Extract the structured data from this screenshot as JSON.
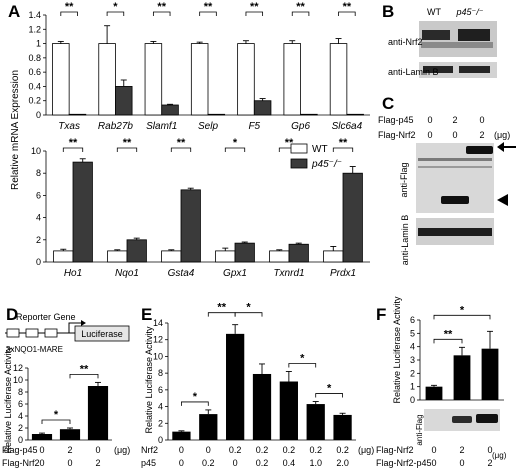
{
  "panels": {
    "A": "A",
    "B": "B",
    "C": "C",
    "D": "D",
    "E": "E",
    "F": "F"
  },
  "chart_data": [
    {
      "panel": "A",
      "type": "bar",
      "ylabel": "Relative mRNA Expression",
      "series_names": [
        "WT",
        "p45⁻/⁻"
      ],
      "subplots": [
        {
          "categories": [
            "Txas",
            "Rab27b",
            "Slamf1",
            "Selp",
            "F5",
            "Gp6",
            "Slc6a4"
          ],
          "ylim": [
            0,
            1.4
          ],
          "yticks": [
            "0",
            "0.2",
            "0.4",
            "0.6",
            "0.8",
            "1",
            "1.2",
            "1.4"
          ],
          "series": [
            {
              "values": [
                1.0,
                1.0,
                1.0,
                1.0,
                1.0,
                1.0,
                1.0
              ],
              "errors": [
                0.03,
                0.25,
                0.03,
                0.02,
                0.04,
                0.04,
                0.07
              ]
            },
            {
              "values": [
                0.01,
                0.4,
                0.14,
                0.01,
                0.2,
                0.01,
                0.01
              ],
              "errors": [
                0.0,
                0.09,
                0.01,
                0.0,
                0.03,
                0.0,
                0.0
              ]
            }
          ],
          "significance": [
            "**",
            "*",
            "**",
            "**",
            "**",
            "**",
            "**"
          ]
        },
        {
          "categories": [
            "Ho1",
            "Nqo1",
            "Gsta4",
            "Gpx1",
            "Txnrd1",
            "Prdx1"
          ],
          "ylim": [
            0,
            10
          ],
          "yticks": [
            "0",
            "2",
            "4",
            "6",
            "8",
            "10"
          ],
          "series": [
            {
              "values": [
                1.0,
                1.0,
                1.0,
                1.0,
                1.0,
                1.0
              ],
              "errors": [
                0.15,
                0.1,
                0.1,
                0.25,
                0.1,
                0.4
              ]
            },
            {
              "values": [
                9.0,
                2.0,
                6.5,
                1.7,
                1.6,
                8.0
              ],
              "errors": [
                0.3,
                0.15,
                0.15,
                0.1,
                0.1,
                0.6
              ]
            }
          ],
          "significance": [
            "**",
            "**",
            "**",
            "*",
            "**",
            "**"
          ]
        }
      ]
    },
    {
      "panel": "D",
      "type": "bar",
      "ylabel": "Relative Luciferase Activity",
      "ylim": [
        0,
        12
      ],
      "yticks": [
        "0",
        "2",
        "4",
        "6",
        "8",
        "10",
        "12"
      ],
      "conditions": [
        {
          "label": "Flag-p45",
          "values": [
            "0",
            "2",
            "0"
          ]
        },
        {
          "label": "Flag-Nrf2",
          "values": [
            "0",
            "0",
            "2"
          ]
        }
      ],
      "unit": "(μg)",
      "values": [
        1.0,
        1.8,
        9.0
      ],
      "errors": [
        0.15,
        0.2,
        0.6
      ],
      "significance": [
        {
          "from": 0,
          "to": 1,
          "label": "*"
        },
        {
          "from": 1,
          "to": 2,
          "label": "**"
        }
      ],
      "construct": {
        "reporter_label": "Reporter Gene",
        "element_label": "3xNQO1-MARE",
        "gene_label": "Luciferase"
      }
    },
    {
      "panel": "E",
      "type": "bar",
      "ylabel": "Relative Luciferase Activity",
      "ylim": [
        0,
        14
      ],
      "yticks": [
        "0",
        "2",
        "4",
        "6",
        "8",
        "10",
        "12",
        "14"
      ],
      "conditions": [
        {
          "label": "Nrf2",
          "values": [
            "0",
            "0",
            "0.2",
            "0.2",
            "0.2",
            "0.2",
            "0.2"
          ]
        },
        {
          "label": "p45",
          "values": [
            "0",
            "0.2",
            "0",
            "0.2",
            "0.4",
            "1.0",
            "2.0"
          ]
        }
      ],
      "unit": "(μg)",
      "values": [
        1.0,
        3.1,
        12.7,
        7.9,
        7.0,
        4.3,
        3.0
      ],
      "errors": [
        0.1,
        0.5,
        1.1,
        1.2,
        1.2,
        0.3,
        0.2
      ],
      "significance": [
        {
          "from": 0,
          "to": 1,
          "label": "*"
        },
        {
          "from": 1,
          "to": 2,
          "label": "**"
        },
        {
          "from": 2,
          "to": 3,
          "label": "*"
        },
        {
          "from": 4,
          "to": 5,
          "label": "*"
        },
        {
          "from": 5,
          "to": 6,
          "label": "*"
        }
      ]
    },
    {
      "panel": "F",
      "type": "bar",
      "ylabel": "Relative Luciferase Activity",
      "ylim": [
        0,
        6
      ],
      "yticks": [
        "0",
        "1",
        "2",
        "3",
        "4",
        "5",
        "6"
      ],
      "conditions": [
        {
          "label": "Flag-Nrf2",
          "values": [
            "0",
            "2",
            "0"
          ]
        },
        {
          "label": "Flag-Nrf2-p45",
          "values": [
            "0",
            "0",
            "2"
          ]
        }
      ],
      "unit": "(μg)",
      "values": [
        1.0,
        3.35,
        3.85
      ],
      "errors": [
        0.1,
        0.6,
        1.3
      ],
      "significance": [
        {
          "from": 0,
          "to": 1,
          "label": "**"
        },
        {
          "from": 0,
          "to": 2,
          "label": "*"
        }
      ],
      "blot_label": "anti-Flag"
    }
  ],
  "blots": {
    "B": {
      "lanes": [
        "WT",
        "p45⁻/⁻"
      ],
      "rows": [
        "anti-Nrf2",
        "anti-Lamin B"
      ]
    },
    "C": {
      "conditions": [
        {
          "label": "Flag-p45",
          "values": [
            "0",
            "2",
            "0"
          ]
        },
        {
          "label": "Flag-Nrf2",
          "values": [
            "0",
            "0",
            "2"
          ]
        }
      ],
      "unit": "(μg)",
      "rows": [
        "anti-Flag",
        "anti-Lamin B"
      ]
    }
  },
  "colors": {
    "wt": "#ffffff",
    "ko": "#3a3a3a",
    "bar": "#000000"
  }
}
